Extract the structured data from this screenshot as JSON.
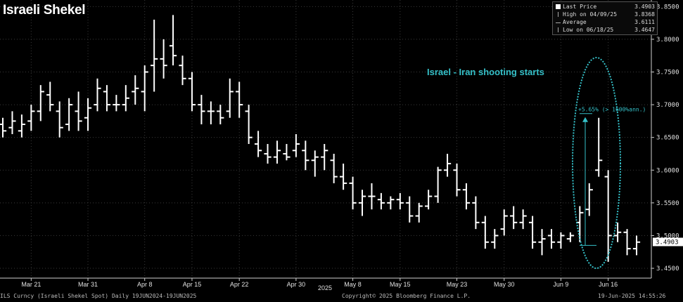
{
  "title": "Israeli Shekel",
  "legend": {
    "last_price_label": "Last Price",
    "last_price_value": "3.4903",
    "high_label": "High on 04/09/25",
    "high_value": "3.8368",
    "average_label": "Average",
    "average_value": "3.6111",
    "low_label": "Low on 06/18/25",
    "low_value": "3.4647"
  },
  "footer": {
    "left": "ILS Curncy (Israeli Shekel Spot) Daily 19JUN2024-19JUN2025",
    "center": "Copyright© 2025 Bloomberg Finance L.P.",
    "right": "19-Jun-2025 14:55:26"
  },
  "chart_data": {
    "type": "ohlc-bar",
    "x_year_label": "2025",
    "y_ticks": [
      "3.4500",
      "3.5000",
      "3.5500",
      "3.6000",
      "3.6500",
      "3.7000",
      "3.7500",
      "3.8000",
      "3.8500"
    ],
    "y_range": [
      3.435,
      3.86
    ],
    "last_price_tag": "3.4903",
    "x_ticks": [
      {
        "label": "Mar 21",
        "i": 3
      },
      {
        "label": "Mar 31",
        "i": 9
      },
      {
        "label": "Apr 8",
        "i": 15
      },
      {
        "label": "Apr 15",
        "i": 20
      },
      {
        "label": "Apr 22",
        "i": 25
      },
      {
        "label": "Apr 30",
        "i": 31
      },
      {
        "label": "May 8",
        "i": 37
      },
      {
        "label": "May 15",
        "i": 42
      },
      {
        "label": "May 23",
        "i": 48
      },
      {
        "label": "May 30",
        "i": 53
      },
      {
        "label": "Jun 9",
        "i": 59
      },
      {
        "label": "Jun 16",
        "i": 64
      }
    ],
    "bars": [
      [
        3.67,
        3.68,
        3.65,
        3.66
      ],
      [
        3.665,
        3.69,
        3.655,
        3.675
      ],
      [
        3.66,
        3.685,
        3.65,
        3.67
      ],
      [
        3.675,
        3.7,
        3.66,
        3.69
      ],
      [
        3.69,
        3.73,
        3.675,
        3.72
      ],
      [
        3.715,
        3.735,
        3.69,
        3.7
      ],
      [
        3.69,
        3.705,
        3.65,
        3.665
      ],
      [
        3.67,
        3.71,
        3.66,
        3.7
      ],
      [
        3.69,
        3.72,
        3.66,
        3.675
      ],
      [
        3.68,
        3.71,
        3.66,
        3.695
      ],
      [
        3.7,
        3.74,
        3.69,
        3.725
      ],
      [
        3.72,
        3.73,
        3.69,
        3.7
      ],
      [
        3.7,
        3.715,
        3.69,
        3.7
      ],
      [
        3.7,
        3.73,
        3.69,
        3.71
      ],
      [
        3.72,
        3.745,
        3.7,
        3.725
      ],
      [
        3.72,
        3.76,
        3.69,
        3.75
      ],
      [
        3.76,
        3.83,
        3.72,
        3.77
      ],
      [
        3.77,
        3.8,
        3.74,
        3.76
      ],
      [
        3.79,
        3.837,
        3.76,
        3.775
      ],
      [
        3.76,
        3.775,
        3.73,
        3.74
      ],
      [
        3.74,
        3.75,
        3.69,
        3.7
      ],
      [
        3.7,
        3.715,
        3.67,
        3.69
      ],
      [
        3.69,
        3.705,
        3.67,
        3.69
      ],
      [
        3.69,
        3.7,
        3.67,
        3.68
      ],
      [
        3.69,
        3.74,
        3.68,
        3.72
      ],
      [
        3.72,
        3.735,
        3.68,
        3.7
      ],
      [
        3.69,
        3.7,
        3.64,
        3.65
      ],
      [
        3.64,
        3.66,
        3.62,
        3.63
      ],
      [
        3.625,
        3.64,
        3.61,
        3.62
      ],
      [
        3.62,
        3.645,
        3.61,
        3.63
      ],
      [
        3.625,
        3.64,
        3.615,
        3.62
      ],
      [
        3.63,
        3.655,
        3.62,
        3.64
      ],
      [
        3.63,
        3.645,
        3.6,
        3.615
      ],
      [
        3.615,
        3.63,
        3.59,
        3.62
      ],
      [
        3.62,
        3.64,
        3.6,
        3.63
      ],
      [
        3.615,
        3.625,
        3.58,
        3.59
      ],
      [
        3.59,
        3.61,
        3.57,
        3.58
      ],
      [
        3.58,
        3.59,
        3.54,
        3.55
      ],
      [
        3.55,
        3.57,
        3.53,
        3.56
      ],
      [
        3.56,
        3.58,
        3.54,
        3.56
      ],
      [
        3.555,
        3.565,
        3.54,
        3.55
      ],
      [
        3.55,
        3.56,
        3.54,
        3.555
      ],
      [
        3.555,
        3.565,
        3.54,
        3.55
      ],
      [
        3.55,
        3.56,
        3.52,
        3.53
      ],
      [
        3.53,
        3.55,
        3.52,
        3.545
      ],
      [
        3.545,
        3.57,
        3.54,
        3.56
      ],
      [
        3.56,
        3.605,
        3.55,
        3.6
      ],
      [
        3.6,
        3.625,
        3.59,
        3.61
      ],
      [
        3.6,
        3.61,
        3.56,
        3.57
      ],
      [
        3.57,
        3.58,
        3.54,
        3.55
      ],
      [
        3.55,
        3.56,
        3.51,
        3.52
      ],
      [
        3.52,
        3.53,
        3.48,
        3.49
      ],
      [
        3.49,
        3.51,
        3.48,
        3.5
      ],
      [
        3.51,
        3.54,
        3.5,
        3.53
      ],
      [
        3.53,
        3.545,
        3.51,
        3.52
      ],
      [
        3.52,
        3.54,
        3.51,
        3.53
      ],
      [
        3.52,
        3.53,
        3.48,
        3.49
      ],
      [
        3.49,
        3.51,
        3.47,
        3.495
      ],
      [
        3.5,
        3.51,
        3.48,
        3.49
      ],
      [
        3.49,
        3.505,
        3.48,
        3.5
      ],
      [
        3.495,
        3.505,
        3.49,
        3.5
      ],
      [
        3.52,
        3.545,
        3.49,
        3.535
      ],
      [
        3.54,
        3.58,
        3.53,
        3.57
      ],
      [
        3.6,
        3.68,
        3.59,
        3.615
      ],
      [
        3.59,
        3.6,
        3.46,
        3.5
      ],
      [
        3.5,
        3.52,
        3.49,
        3.505
      ],
      [
        3.505,
        3.51,
        3.47,
        3.48
      ],
      [
        3.48,
        3.5,
        3.47,
        3.49
      ]
    ],
    "annotation_text": "Israel - Iran shooting starts",
    "move_label": "+5.65% (> 1600%ann.)",
    "move_range": [
      3.485,
      3.68
    ],
    "colors": {
      "bar": "#ffffff",
      "accent": "#35c0c8",
      "grid": "#3a3a3a",
      "axis": "#cfcfcf"
    }
  }
}
